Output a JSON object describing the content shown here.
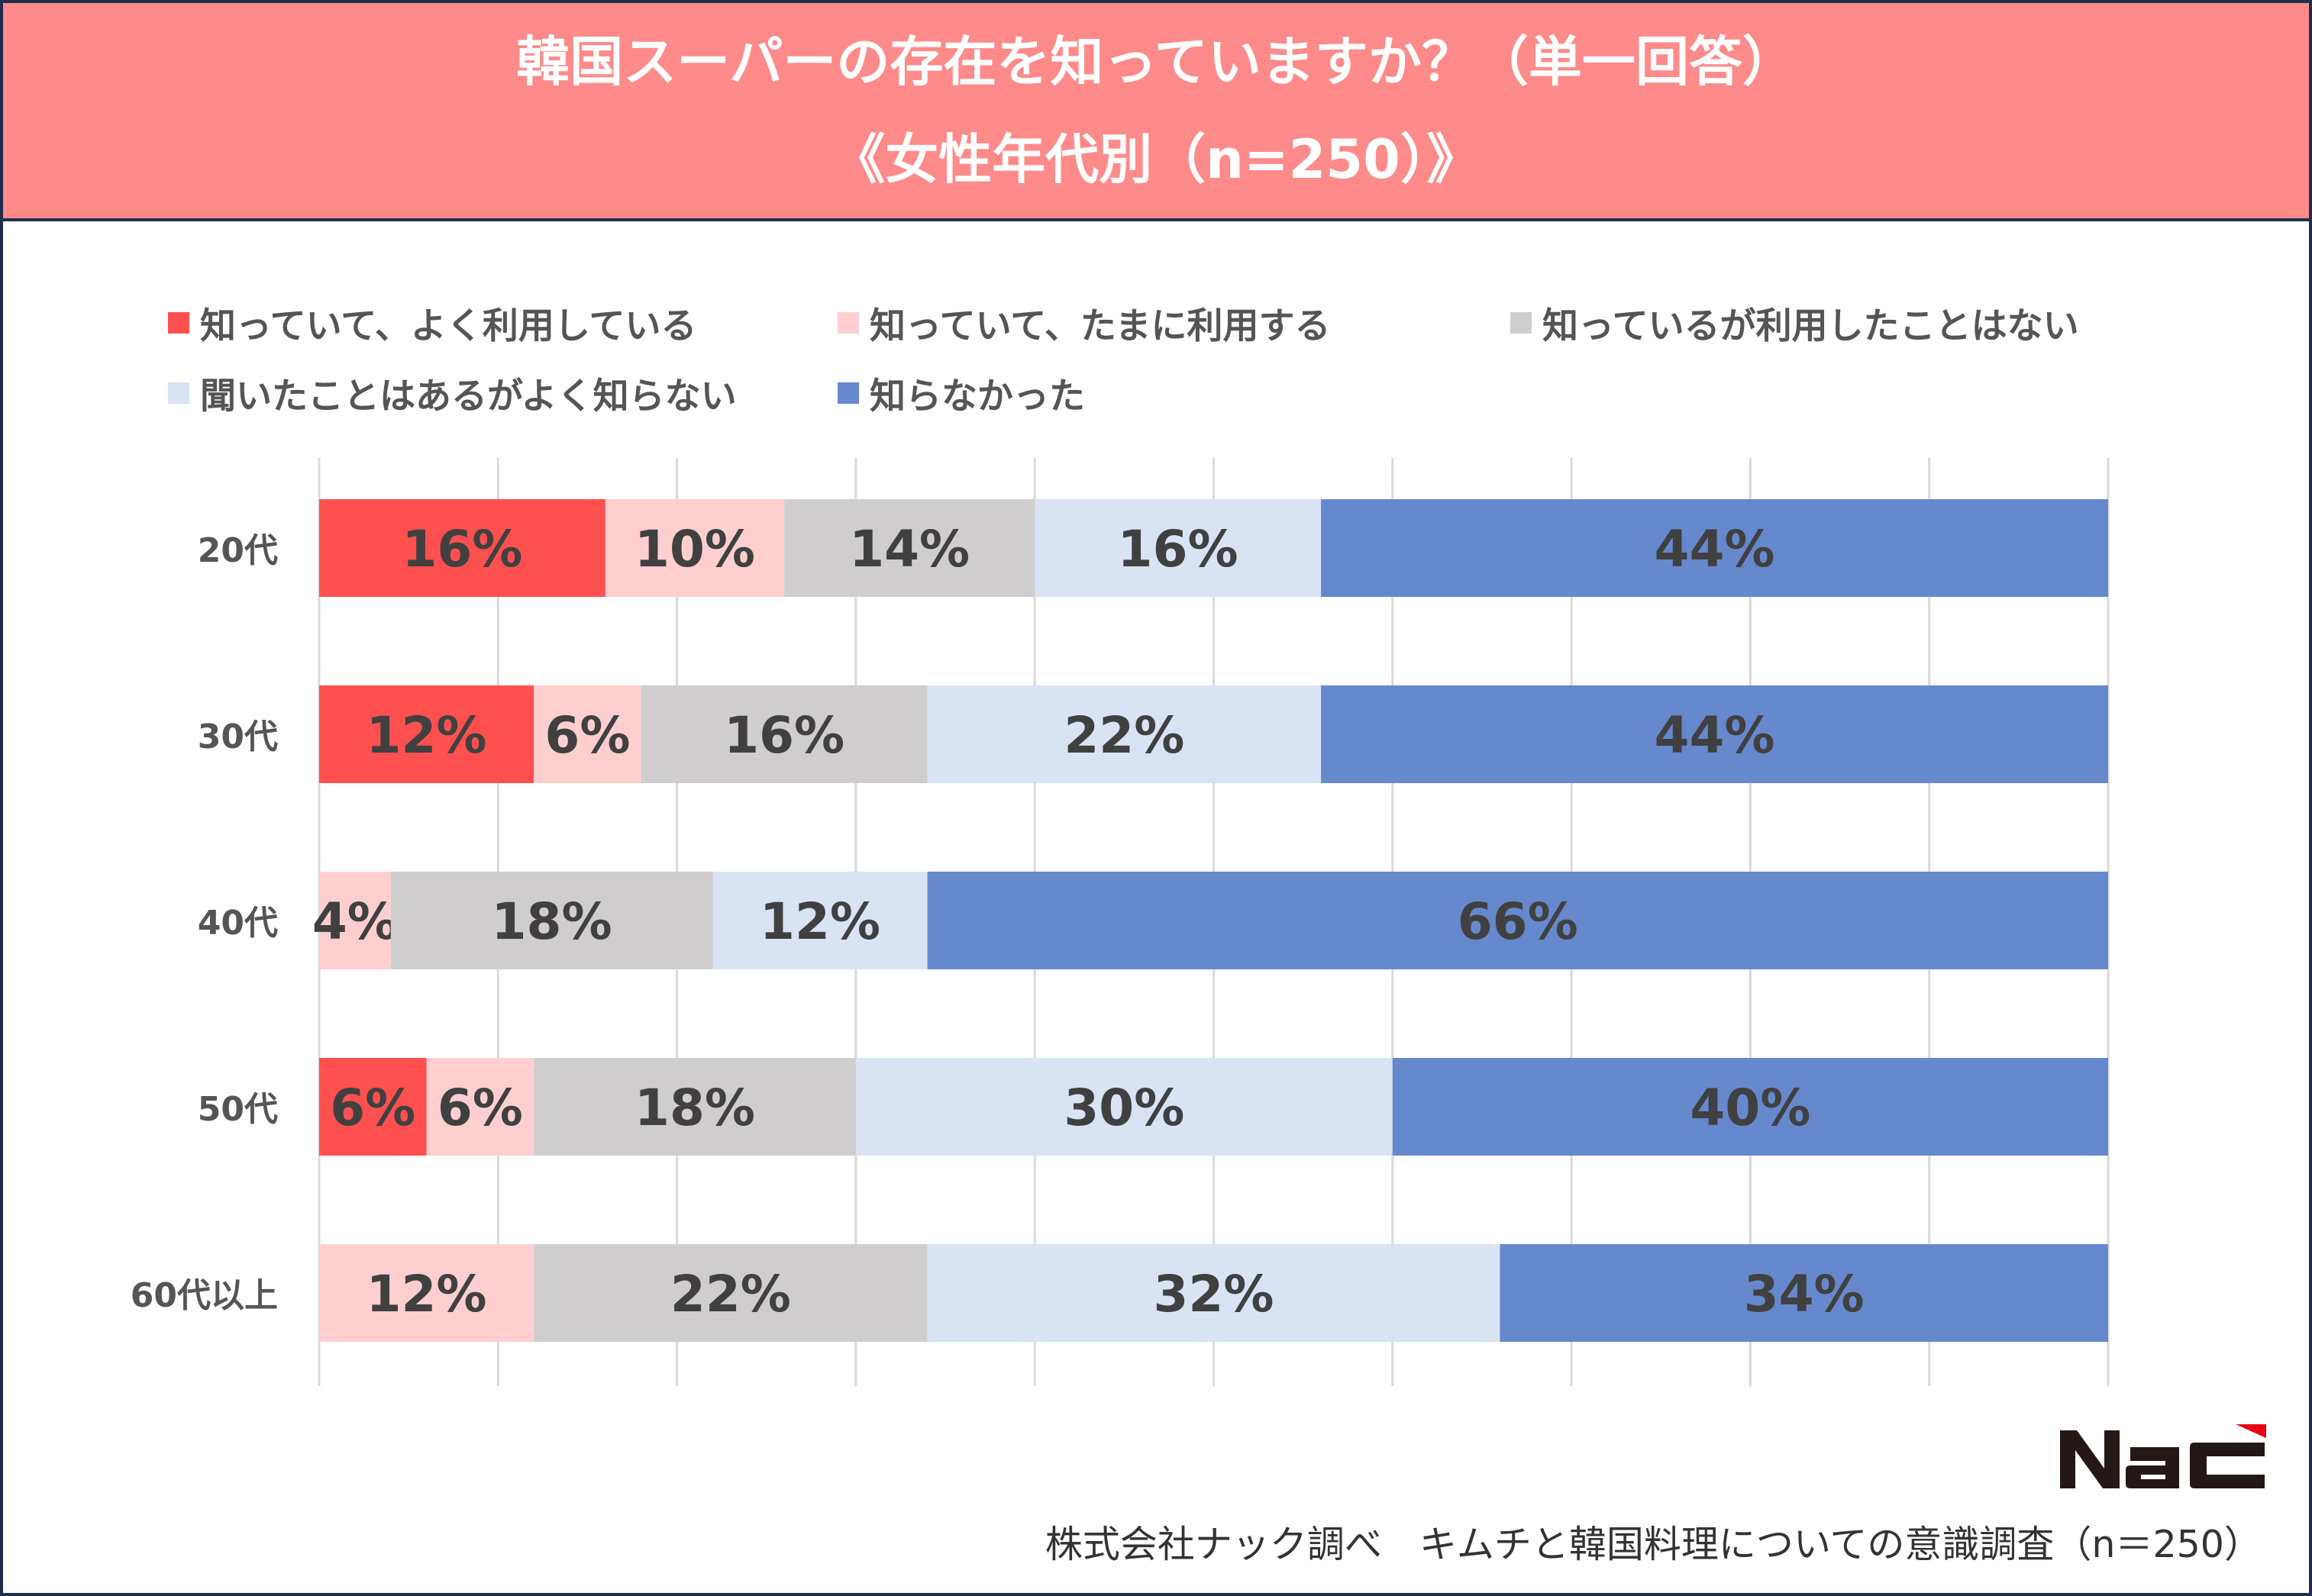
{
  "chart_data": {
    "type": "bar",
    "orientation": "horizontal-stacked-100",
    "title": "韓国スーパーの存在を知っていますか？（単一回答）",
    "subtitle": "《女性年代別（n=250）》",
    "categories": [
      "20代",
      "30代",
      "40代",
      "50代",
      "60代以上"
    ],
    "series": [
      {
        "name": "知っていて、よく利用している",
        "color": "#ff5050",
        "values": [
          16,
          12,
          0,
          6,
          0
        ]
      },
      {
        "name": "知っていて、たまに利用する",
        "color": "#ffcfd0",
        "values": [
          10,
          6,
          4,
          6,
          12
        ]
      },
      {
        "name": "知っているが利用したことはない",
        "color": "#cfcdcd",
        "values": [
          14,
          16,
          18,
          18,
          22
        ]
      },
      {
        "name": "聞いたことはあるがよく知らない",
        "color": "#d9e3f4",
        "values": [
          16,
          22,
          12,
          30,
          32
        ]
      },
      {
        "name": "知らなかった",
        "color": "#6689ce",
        "values": [
          44,
          44,
          66,
          40,
          34
        ]
      }
    ],
    "xlim": [
      0,
      100
    ],
    "value_suffix": "%",
    "grid": true,
    "legend_position": "top"
  },
  "footer": {
    "source": "株式会社ナック調べ　キムチと韓国料理についての意識調査（n＝250）"
  },
  "logo": {
    "text": "NAC",
    "color": "#231815",
    "accent": "#e60012"
  }
}
